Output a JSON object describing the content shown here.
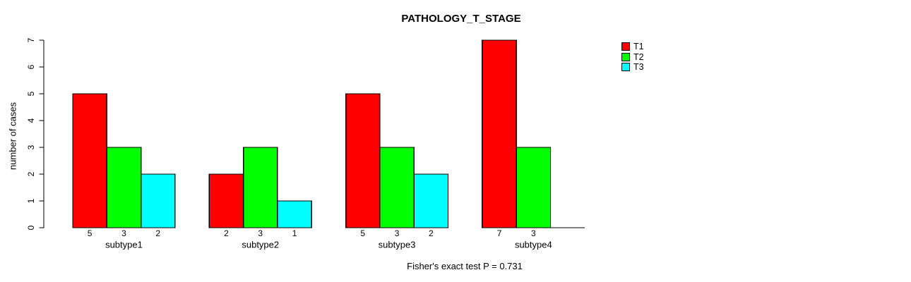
{
  "chart_data": {
    "type": "bar",
    "grouped": true,
    "title": "PATHOLOGY_T_STAGE",
    "xlabel": "",
    "ylabel": "number of cases",
    "ylim": [
      0,
      7
    ],
    "yticks": [
      0,
      1,
      2,
      3,
      4,
      5,
      6,
      7
    ],
    "grid": false,
    "categories": [
      "subtype1",
      "subtype2",
      "subtype3",
      "subtype4"
    ],
    "series": [
      {
        "name": "T1",
        "color": "#ff0000",
        "values": [
          5,
          2,
          5,
          7
        ]
      },
      {
        "name": "T2",
        "color": "#00ff00",
        "values": [
          3,
          3,
          3,
          3
        ]
      },
      {
        "name": "T3",
        "color": "#00ffff",
        "values": [
          2,
          1,
          2,
          0
        ]
      }
    ],
    "value_labels": [
      [
        "5",
        "3",
        "2"
      ],
      [
        "2",
        "3",
        "1"
      ],
      [
        "5",
        "3",
        "2"
      ],
      [
        "7",
        "3",
        ""
      ]
    ],
    "legend": {
      "position": "right",
      "entries": [
        "T1",
        "T2",
        "T3"
      ]
    },
    "annotation": "Fisher's exact test P = 0.731",
    "colors": {
      "background": "#ffffff",
      "axis": "#000000",
      "bar_border": "#000000",
      "text": "#000000"
    }
  }
}
